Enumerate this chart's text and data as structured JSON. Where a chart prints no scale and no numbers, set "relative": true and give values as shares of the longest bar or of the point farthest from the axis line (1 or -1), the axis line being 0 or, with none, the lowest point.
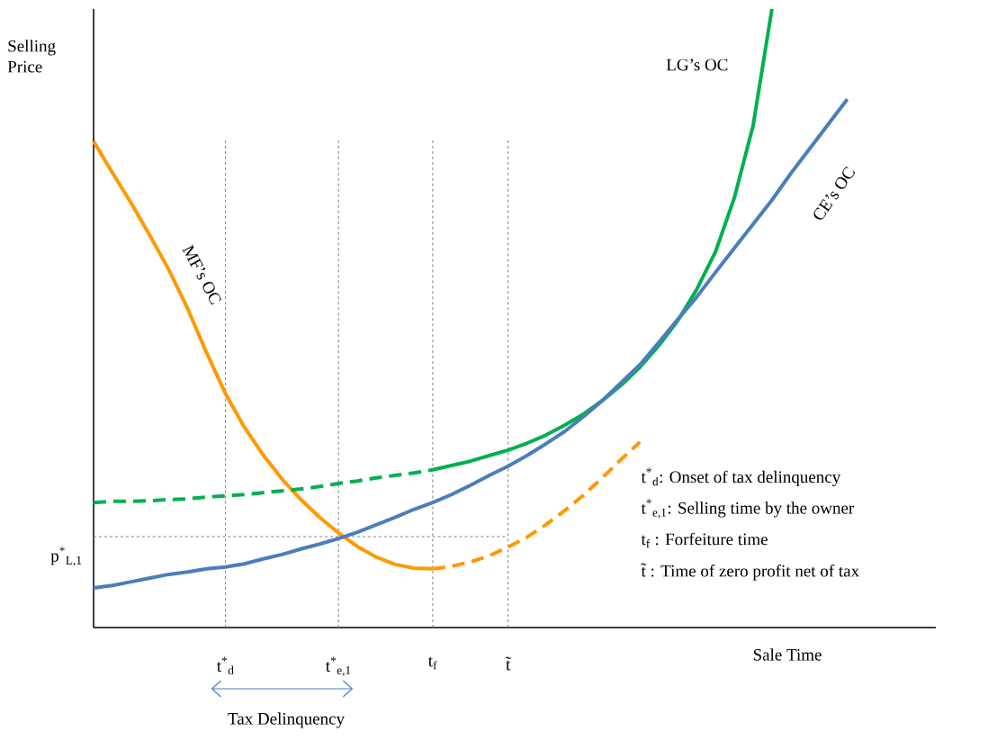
{
  "chart_data": {
    "type": "line",
    "relative": true,
    "ylabel": "Selling Price",
    "xlabel": "Sale Time",
    "categories": [
      null,
      null,
      null,
      null,
      null,
      null,
      null,
      "t$^{*}$$_{d}$",
      null,
      null,
      null,
      null,
      null,
      "t$^{*}$$_{e,1}$",
      null,
      null,
      null,
      null,
      "t$_{f}$",
      null,
      null,
      null,
      "t̃",
      null,
      null,
      null,
      null,
      null,
      null,
      null,
      null,
      null,
      null,
      null,
      null,
      null,
      null,
      null,
      null,
      null,
      null,
      null,
      null,
      null,
      null
    ],
    "series": [
      {
        "name": "MF’s OC",
        "color": "#ff9900",
        "line_style": "solid",
        "values": [
          0.786,
          0.735,
          0.686,
          0.633,
          0.578,
          0.515,
          0.444,
          0.378,
          0.324,
          0.279,
          0.24,
          0.207,
          0.178,
          0.153,
          0.131,
          0.114,
          0.102,
          0.096,
          0.095,
          null,
          null,
          null,
          null,
          null,
          null,
          null,
          null,
          null,
          null,
          null,
          null,
          null,
          null,
          null,
          null,
          null,
          null,
          null,
          null,
          null,
          null,
          null,
          null,
          null,
          null
        ]
      },
      {
        "color": "#ff9900",
        "line_style": "dashed",
        "values": [
          null,
          null,
          null,
          null,
          null,
          null,
          null,
          null,
          null,
          null,
          null,
          null,
          null,
          null,
          null,
          null,
          null,
          null,
          0.095,
          0.099,
          0.106,
          0.116,
          0.13,
          0.146,
          0.166,
          0.189,
          0.214,
          0.242,
          0.272,
          0.3,
          null,
          null,
          null,
          null,
          null,
          null,
          null,
          null,
          null,
          null,
          null,
          null,
          null,
          null,
          null
        ]
      },
      {
        "color": "#00b050",
        "line_style": "dashed",
        "values": [
          0.202,
          0.204,
          0.204,
          0.205,
          0.207,
          0.208,
          0.211,
          0.213,
          0.215,
          0.218,
          0.221,
          0.224,
          0.228,
          0.233,
          0.237,
          0.242,
          0.246,
          0.25,
          0.255,
          null,
          null,
          null,
          null,
          null,
          null,
          null,
          null,
          null,
          null,
          null,
          null,
          null,
          null,
          null,
          null,
          null,
          null,
          null,
          null,
          null,
          null,
          null,
          null,
          null,
          null
        ]
      },
      {
        "name": "LG’s OC",
        "color": "#00b050",
        "line_style": "solid",
        "values": [
          null,
          null,
          null,
          null,
          null,
          null,
          null,
          null,
          null,
          null,
          null,
          null,
          null,
          null,
          null,
          null,
          null,
          null,
          0.255,
          0.262,
          0.269,
          0.278,
          0.287,
          0.298,
          0.311,
          0.327,
          0.345,
          0.367,
          0.392,
          0.421,
          0.456,
          0.496,
          0.546,
          0.607,
          0.694,
          0.811,
          1,
          null,
          null,
          null,
          null,
          null,
          null,
          null,
          null
        ]
      },
      {
        "name": "CE’s OC",
        "color": "#4a7ebb",
        "line_style": "solid",
        "values": [
          0.064,
          0.068,
          0.074,
          0.08,
          0.086,
          0.09,
          0.095,
          0.098,
          0.103,
          0.111,
          0.118,
          0.127,
          0.135,
          0.144,
          0.154,
          0.166,
          0.178,
          0.191,
          0.202,
          0.215,
          0.23,
          0.246,
          0.261,
          0.278,
          0.297,
          0.317,
          0.341,
          0.367,
          0.396,
          0.425,
          0.461,
          0.498,
          0.534,
          0.574,
          0.613,
          0.652,
          0.691,
          0.734,
          0.774,
          0.814,
          0.854,
          null,
          null,
          null,
          null
        ]
      }
    ],
    "grid": "x",
    "ref_lines": [
      {
        "axis": "y",
        "value": 0.147,
        "label": "p$^{*}$$_{L,1}$",
        "color": "#808080",
        "line_style": "dashed"
      }
    ],
    "annotations": [
      "t$^{*}$$_{d}$: Onset of tax delinquency",
      "t$^{*}$$_{e,1}$: Selling time by the owner",
      "t$_{f}$ : Forfeiture time",
      "t̃ : Time of zero profit net of tax",
      "Tax Delinquency"
    ]
  }
}
